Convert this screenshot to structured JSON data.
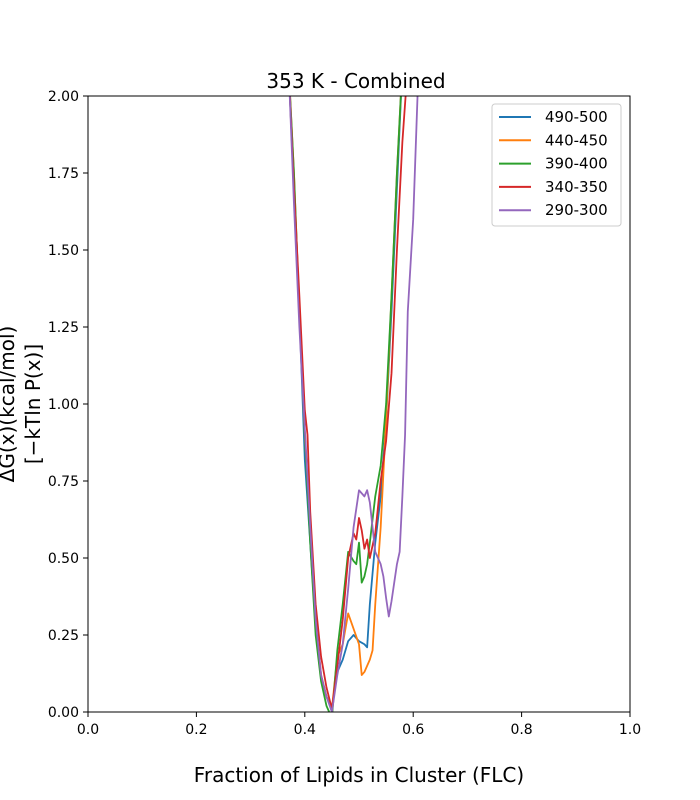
{
  "chart_data": {
    "type": "line",
    "title": "353 K - Combined",
    "xlabel": "Fraction of Lipids in Cluster (FLC)",
    "ylabel_line1": "ΔG(x)(kcal/mol)",
    "ylabel_line2": "[−kTln P(x)]",
    "xlim": [
      0.0,
      1.0
    ],
    "ylim": [
      0.0,
      2.0
    ],
    "xticks": [
      "0.0",
      "0.2",
      "0.4",
      "0.6",
      "0.8",
      "1.0"
    ],
    "yticks": [
      "0.00",
      "0.25",
      "0.50",
      "0.75",
      "1.00",
      "1.25",
      "1.50",
      "1.75",
      "2.00"
    ],
    "legend_position": "top-right",
    "grid": false,
    "series": [
      {
        "name": "490-500",
        "color": "#1f77b4",
        "x": [
          0.37,
          0.38,
          0.39,
          0.4,
          0.41,
          0.42,
          0.43,
          0.44,
          0.45,
          0.46,
          0.47,
          0.48,
          0.49,
          0.5,
          0.51,
          0.515,
          0.52,
          0.53,
          0.54,
          0.55,
          0.56,
          0.57,
          0.58
        ],
        "y": [
          2.1,
          1.7,
          1.3,
          0.82,
          0.55,
          0.28,
          0.12,
          0.05,
          0.01,
          0.13,
          0.17,
          0.23,
          0.25,
          0.23,
          0.22,
          0.21,
          0.35,
          0.55,
          0.7,
          0.95,
          1.3,
          1.7,
          2.1
        ]
      },
      {
        "name": "440-450",
        "color": "#ff7f0e",
        "x": [
          0.37,
          0.38,
          0.39,
          0.4,
          0.41,
          0.42,
          0.43,
          0.44,
          0.45,
          0.46,
          0.47,
          0.48,
          0.49,
          0.5,
          0.505,
          0.51,
          0.52,
          0.525,
          0.53,
          0.54,
          0.55,
          0.56,
          0.57,
          0.58
        ],
        "y": [
          2.1,
          1.75,
          1.3,
          0.9,
          0.6,
          0.3,
          0.12,
          0.05,
          0.01,
          0.18,
          0.22,
          0.32,
          0.27,
          0.22,
          0.12,
          0.13,
          0.17,
          0.2,
          0.35,
          0.6,
          0.95,
          1.35,
          1.75,
          2.1
        ]
      },
      {
        "name": "390-400",
        "color": "#2ca02c",
        "x": [
          0.37,
          0.38,
          0.39,
          0.4,
          0.41,
          0.42,
          0.43,
          0.44,
          0.45,
          0.46,
          0.47,
          0.48,
          0.49,
          0.495,
          0.5,
          0.505,
          0.51,
          0.515,
          0.52,
          0.53,
          0.54,
          0.55,
          0.56,
          0.57,
          0.58
        ],
        "y": [
          2.1,
          1.75,
          1.3,
          0.9,
          0.55,
          0.25,
          0.1,
          0.02,
          -0.02,
          0.2,
          0.35,
          0.52,
          0.49,
          0.48,
          0.55,
          0.42,
          0.44,
          0.48,
          0.55,
          0.7,
          0.8,
          1.0,
          1.35,
          1.75,
          2.1
        ]
      },
      {
        "name": "340-350",
        "color": "#d62728",
        "x": [
          0.37,
          0.38,
          0.39,
          0.4,
          0.405,
          0.41,
          0.42,
          0.43,
          0.44,
          0.45,
          0.46,
          0.47,
          0.48,
          0.49,
          0.495,
          0.5,
          0.505,
          0.51,
          0.515,
          0.52,
          0.53,
          0.54,
          0.55,
          0.56,
          0.57,
          0.58,
          0.59
        ],
        "y": [
          2.1,
          1.7,
          1.35,
          0.98,
          0.9,
          0.65,
          0.35,
          0.18,
          0.08,
          0.01,
          0.15,
          0.3,
          0.5,
          0.58,
          0.56,
          0.63,
          0.59,
          0.53,
          0.56,
          0.5,
          0.58,
          0.75,
          0.88,
          1.1,
          1.5,
          1.85,
          2.1
        ]
      },
      {
        "name": "290-300",
        "color": "#9467bd",
        "x": [
          0.37,
          0.38,
          0.39,
          0.4,
          0.41,
          0.42,
          0.43,
          0.44,
          0.45,
          0.46,
          0.47,
          0.48,
          0.49,
          0.5,
          0.51,
          0.515,
          0.52,
          0.53,
          0.54,
          0.545,
          0.55,
          0.555,
          0.56,
          0.57,
          0.575,
          0.58,
          0.585,
          0.59,
          0.6,
          0.61
        ],
        "y": [
          2.1,
          1.65,
          1.25,
          0.92,
          0.6,
          0.3,
          0.12,
          0.05,
          0.0,
          0.12,
          0.22,
          0.4,
          0.6,
          0.72,
          0.7,
          0.72,
          0.68,
          0.52,
          0.48,
          0.44,
          0.37,
          0.31,
          0.36,
          0.48,
          0.52,
          0.7,
          0.9,
          1.3,
          1.6,
          2.1
        ]
      }
    ]
  }
}
